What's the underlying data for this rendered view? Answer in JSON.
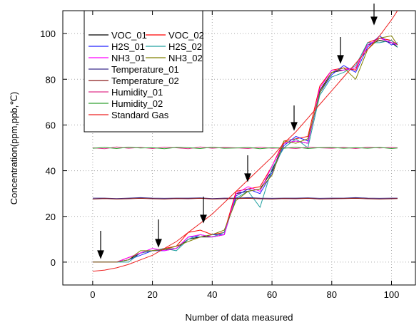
{
  "chart_data": {
    "type": "line",
    "x_label": "Number of data measured",
    "y_label": "Concentration(ppm,ppb,℃)",
    "xlim": [
      -10,
      108
    ],
    "ylim": [
      -10,
      110
    ],
    "xticks": [
      0,
      20,
      40,
      60,
      80,
      100
    ],
    "yticks": [
      0,
      20,
      40,
      60,
      80,
      100
    ],
    "grid": true,
    "legend_position": "upper left",
    "x": [
      0,
      4,
      8,
      12,
      16,
      20,
      24,
      28,
      32,
      36,
      40,
      44,
      48,
      52,
      56,
      60,
      64,
      68,
      72,
      76,
      80,
      84,
      88,
      92,
      96,
      100,
      102
    ],
    "series": [
      {
        "name": "VOC_01",
        "color": "#000000",
        "values": [
          0,
          0,
          0,
          1,
          4,
          5,
          5.5,
          6,
          10,
          11,
          11,
          12,
          30,
          31,
          32,
          40,
          52,
          53,
          52,
          75,
          83,
          84,
          85,
          95,
          97,
          96,
          94
        ]
      },
      {
        "name": "VOC_02",
        "color": "#ff0000",
        "values": [
          0,
          0,
          0,
          2,
          4,
          5,
          6,
          7,
          13,
          14,
          12,
          13,
          31,
          32,
          33,
          42,
          53,
          54,
          55,
          77,
          84,
          85,
          84,
          96,
          98,
          97,
          95
        ]
      },
      {
        "name": "H2S_01",
        "color": "#2020ff",
        "values": [
          0,
          0,
          0,
          1,
          3,
          5,
          5,
          6,
          11,
          11,
          12,
          12,
          29,
          32,
          30,
          39,
          51,
          55,
          53,
          74,
          82,
          86,
          83,
          94,
          99,
          95,
          96
        ]
      },
      {
        "name": "H2S_02",
        "color": "#20a0a0",
        "values": [
          0,
          0,
          0,
          0,
          4,
          5,
          6,
          5,
          10,
          12,
          11,
          13,
          28,
          31,
          24,
          41,
          50,
          54,
          50,
          73,
          81,
          83,
          86,
          96,
          96,
          97,
          94
        ]
      },
      {
        "name": "NH3_01",
        "color": "#ff00ff",
        "values": [
          0,
          0,
          0,
          2,
          4,
          6,
          5,
          6,
          11,
          12,
          11,
          12,
          30,
          33,
          31,
          42,
          52,
          53,
          52,
          76,
          84,
          84,
          85,
          95,
          98,
          96,
          95
        ]
      },
      {
        "name": "NH3_02",
        "color": "#808000",
        "values": [
          0,
          0,
          0,
          1,
          5,
          5,
          5.5,
          7,
          9,
          11,
          12,
          14,
          27,
          31,
          32,
          38,
          53,
          52,
          54,
          74,
          83,
          85,
          80,
          93,
          98,
          99,
          95
        ]
      },
      {
        "name": "Temperature_01",
        "color": "#3a2a8a",
        "values": [
          28,
          28,
          27.8,
          28,
          28.2,
          28,
          27.9,
          28,
          28,
          28.1,
          27.8,
          28,
          28,
          28.2,
          28,
          27.9,
          28,
          28,
          28.1,
          27.9,
          28,
          28,
          28.2,
          28,
          27.9,
          28,
          28
        ]
      },
      {
        "name": "Temperature_02",
        "color": "#8b1a1a",
        "values": [
          27.6,
          27.8,
          27.6,
          27.7,
          27.9,
          27.7,
          27.6,
          27.8,
          27.7,
          27.9,
          27.6,
          27.7,
          27.8,
          27.9,
          27.7,
          27.6,
          27.8,
          27.7,
          27.9,
          27.6,
          27.7,
          27.8,
          27.9,
          27.7,
          27.6,
          27.7,
          27.8
        ]
      },
      {
        "name": "Humidity_01",
        "color": "#e0308a",
        "values": [
          50,
          49.6,
          50.4,
          49.8,
          50.2,
          49.7,
          50.3,
          50,
          49.6,
          50.4,
          49.8,
          50.2,
          50,
          49.7,
          50.3,
          49.8,
          50.1,
          49.7,
          50.3,
          50,
          49.8,
          50.2,
          49.7,
          50.3,
          49.9,
          50.2,
          50
        ]
      },
      {
        "name": "Humidity_02",
        "color": "#30a030",
        "values": [
          49.8,
          50.2,
          49.7,
          50.3,
          49.9,
          50.1,
          49.6,
          50.2,
          50.1,
          49.7,
          50.3,
          49.8,
          49.9,
          50.2,
          49.6,
          50.1,
          49.8,
          50.3,
          49.7,
          50.1,
          50.2,
          49.8,
          50.1,
          49.8,
          50.2,
          49.7,
          49.9
        ]
      },
      {
        "name": "Standard Gas",
        "color": "#ee2020",
        "values": [
          -4,
          -3.5,
          -2.5,
          -1,
          1,
          3,
          6,
          9,
          13,
          17,
          21,
          26,
          31,
          36,
          41,
          46,
          52,
          57,
          63,
          69,
          75,
          81,
          87,
          93,
          99,
          106,
          110
        ]
      }
    ]
  }
}
